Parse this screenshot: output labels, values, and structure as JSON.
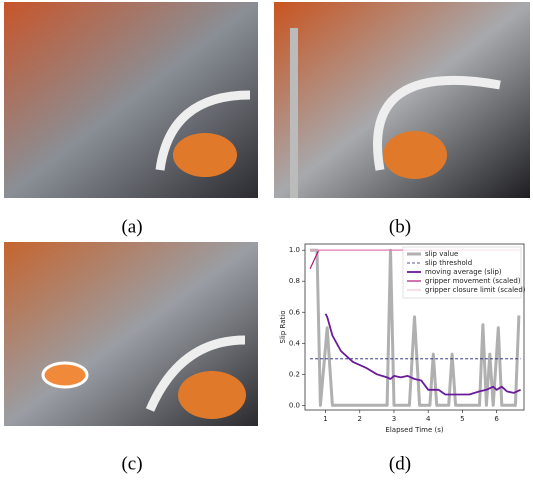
{
  "panels": [
    {
      "caption": "(a)"
    },
    {
      "caption": "(b)"
    },
    {
      "caption": "(c)"
    },
    {
      "caption": "(d)"
    }
  ],
  "chart_data": {
    "type": "line",
    "x_label": "Elapsed Time (s)",
    "y_label": "Slip Ratio",
    "xlim": [
      0.4,
      6.8
    ],
    "ylim": [
      -0.03,
      1.04
    ],
    "xticks": [
      1,
      2,
      3,
      4,
      5,
      6
    ],
    "yticks": [
      {
        "value": 0,
        "label": "0.0"
      },
      {
        "value": 0.2,
        "label": "0.2"
      },
      {
        "value": 0.4,
        "label": "0.4"
      },
      {
        "value": 0.6,
        "label": "0.6"
      },
      {
        "value": 0.8,
        "label": "0.8"
      },
      {
        "value": 1,
        "label": "1.0"
      }
    ],
    "legend": "upper right",
    "series": [
      {
        "name": "slip value",
        "color": "#b0b0b0",
        "width": 3,
        "dash": false,
        "x": [
          0.55,
          0.75,
          0.85,
          1.05,
          1.2,
          2.8,
          2.9,
          3.0,
          3.45,
          3.6,
          3.75,
          4.05,
          4.15,
          4.25,
          4.6,
          4.7,
          4.8,
          5.5,
          5.6,
          5.7,
          5.8,
          5.9,
          6.05,
          6.15,
          6.55,
          6.65
        ],
        "values": [
          1.0,
          1.0,
          0,
          0.5,
          0,
          0,
          1.0,
          0,
          0,
          0.57,
          0,
          0,
          0.33,
          0,
          0,
          0.33,
          0,
          0,
          0.52,
          0,
          0.33,
          0,
          0.5,
          0,
          0,
          0.58
        ]
      },
      {
        "name": "slip threshold",
        "color": "#1f1f7a",
        "width": 0.8,
        "dash": true,
        "x": [
          0.55,
          6.7
        ],
        "values": [
          0.3,
          0.3
        ]
      },
      {
        "name": "moving average (slip)",
        "color": "#6a1b9a",
        "width": 1.8,
        "dash": false,
        "x": [
          1.0,
          1.05,
          1.2,
          1.45,
          1.8,
          2.2,
          2.5,
          2.8,
          2.9,
          3.0,
          3.2,
          3.4,
          3.6,
          3.8,
          4.0,
          4.3,
          4.5,
          5.2,
          5.5,
          5.7,
          5.9,
          6.0,
          6.15,
          6.3,
          6.5,
          6.7
        ],
        "values": [
          0.59,
          0.57,
          0.45,
          0.35,
          0.28,
          0.24,
          0.2,
          0.18,
          0.17,
          0.19,
          0.18,
          0.19,
          0.17,
          0.16,
          0.1,
          0.1,
          0.07,
          0.07,
          0.09,
          0.1,
          0.12,
          0.1,
          0.12,
          0.09,
          0.08,
          0.1
        ]
      },
      {
        "name": "gripper movement (scaled)",
        "color": "#b0177a",
        "width": 1.2,
        "dash": false,
        "x": [
          0.55,
          0.8,
          6.7
        ],
        "values": [
          0.88,
          1.0,
          1.0
        ]
      },
      {
        "name": "gripper closure limit (scaled)",
        "color": "#f4a6c8",
        "width": 0.8,
        "dash": false,
        "x": [
          0.55,
          6.7
        ],
        "values": [
          1.0,
          1.0
        ]
      }
    ]
  }
}
